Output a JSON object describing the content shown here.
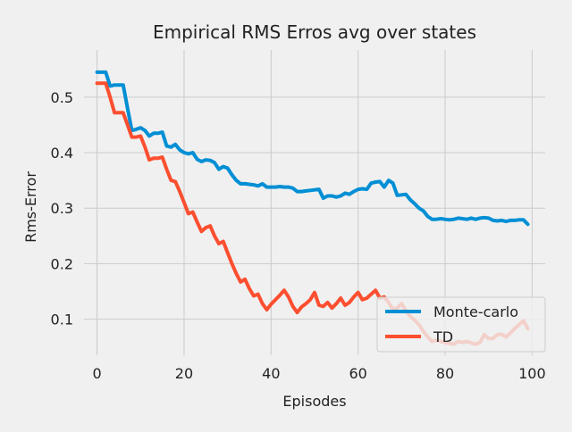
{
  "chart_data": {
    "type": "line",
    "title": "Empirical RMS Erros avg over states",
    "xlabel": "Episodes",
    "ylabel": "Rms-Error",
    "xlim": [
      -3,
      103
    ],
    "ylim": [
      0.035,
      0.585
    ],
    "xticks": [
      0,
      20,
      40,
      60,
      80,
      100
    ],
    "yticks": [
      0.1,
      0.2,
      0.3,
      0.4,
      0.5
    ],
    "xtick_labels": [
      "0",
      "20",
      "40",
      "60",
      "80",
      "100"
    ],
    "ytick_labels": [
      "0.1",
      "0.2",
      "0.3",
      "0.4",
      "0.5"
    ],
    "grid": true,
    "legend_position": "lower-right",
    "background": "#f0f0f0",
    "grid_color": "#cbcbcb",
    "series": [
      {
        "name": "Monte-carlo",
        "color": "#008fd5",
        "x": [
          0,
          1,
          2,
          3,
          4,
          5,
          6,
          7,
          8,
          9,
          10,
          11,
          12,
          13,
          14,
          15,
          16,
          17,
          18,
          19,
          20,
          21,
          22,
          23,
          24,
          25,
          26,
          27,
          28,
          29,
          30,
          31,
          32,
          33,
          34,
          35,
          36,
          37,
          38,
          39,
          40,
          41,
          42,
          43,
          44,
          45,
          46,
          47,
          48,
          49,
          50,
          51,
          52,
          53,
          54,
          55,
          56,
          57,
          58,
          59,
          60,
          61,
          62,
          63,
          64,
          65,
          66,
          67,
          68,
          69,
          70,
          71,
          72,
          73,
          74,
          75,
          76,
          77,
          78,
          79,
          80,
          81,
          82,
          83,
          84,
          85,
          86,
          87,
          88,
          89,
          90,
          91,
          92,
          93,
          94,
          95,
          96,
          97,
          98,
          99
        ],
        "y": [
          0.545,
          0.545,
          0.545,
          0.52,
          0.522,
          0.522,
          0.522,
          0.48,
          0.44,
          0.442,
          0.445,
          0.44,
          0.43,
          0.435,
          0.435,
          0.437,
          0.412,
          0.41,
          0.415,
          0.405,
          0.4,
          0.398,
          0.4,
          0.388,
          0.384,
          0.387,
          0.386,
          0.382,
          0.37,
          0.375,
          0.372,
          0.36,
          0.35,
          0.344,
          0.344,
          0.343,
          0.342,
          0.34,
          0.344,
          0.338,
          0.338,
          0.338,
          0.339,
          0.338,
          0.338,
          0.336,
          0.33,
          0.33,
          0.331,
          0.332,
          0.333,
          0.334,
          0.318,
          0.322,
          0.322,
          0.32,
          0.322,
          0.327,
          0.325,
          0.33,
          0.334,
          0.335,
          0.334,
          0.345,
          0.347,
          0.348,
          0.338,
          0.35,
          0.345,
          0.323,
          0.324,
          0.325,
          0.315,
          0.308,
          0.3,
          0.295,
          0.285,
          0.28,
          0.28,
          0.281,
          0.28,
          0.279,
          0.28,
          0.282,
          0.281,
          0.28,
          0.282,
          0.28,
          0.282,
          0.283,
          0.282,
          0.278,
          0.277,
          0.278,
          0.276,
          0.278,
          0.278,
          0.279,
          0.279,
          0.271
        ]
      },
      {
        "name": "TD",
        "color": "#fc4f30",
        "x": [
          0,
          1,
          2,
          3,
          4,
          5,
          6,
          7,
          8,
          9,
          10,
          11,
          12,
          13,
          14,
          15,
          16,
          17,
          18,
          19,
          20,
          21,
          22,
          23,
          24,
          25,
          26,
          27,
          28,
          29,
          30,
          31,
          32,
          33,
          34,
          35,
          36,
          37,
          38,
          39,
          40,
          41,
          42,
          43,
          44,
          45,
          46,
          47,
          48,
          49,
          50,
          51,
          52,
          53,
          54,
          55,
          56,
          57,
          58,
          59,
          60,
          61,
          62,
          63,
          64,
          65,
          66,
          67,
          68,
          69,
          70,
          71,
          72,
          73,
          74,
          75,
          76,
          77,
          78,
          79,
          80,
          81,
          82,
          83,
          84,
          85,
          86,
          87,
          88,
          89,
          90,
          91,
          92,
          93,
          94,
          95,
          96,
          97,
          98,
          99
        ],
        "y": [
          0.525,
          0.525,
          0.525,
          0.5,
          0.472,
          0.472,
          0.472,
          0.45,
          0.428,
          0.428,
          0.43,
          0.41,
          0.387,
          0.39,
          0.39,
          0.392,
          0.37,
          0.35,
          0.348,
          0.33,
          0.31,
          0.29,
          0.293,
          0.275,
          0.258,
          0.265,
          0.268,
          0.25,
          0.236,
          0.24,
          0.22,
          0.2,
          0.182,
          0.167,
          0.172,
          0.155,
          0.142,
          0.145,
          0.128,
          0.117,
          0.127,
          0.135,
          0.143,
          0.152,
          0.14,
          0.123,
          0.112,
          0.122,
          0.128,
          0.135,
          0.148,
          0.125,
          0.123,
          0.13,
          0.12,
          0.128,
          0.138,
          0.125,
          0.13,
          0.14,
          0.148,
          0.135,
          0.138,
          0.145,
          0.152,
          0.138,
          0.14,
          0.13,
          0.118,
          0.12,
          0.128,
          0.115,
          0.105,
          0.098,
          0.09,
          0.078,
          0.068,
          0.06,
          0.062,
          0.06,
          0.058,
          0.056,
          0.055,
          0.06,
          0.058,
          0.06,
          0.057,
          0.055,
          0.058,
          0.072,
          0.065,
          0.065,
          0.072,
          0.073,
          0.068,
          0.075,
          0.083,
          0.09,
          0.097,
          0.083
        ]
      }
    ]
  }
}
